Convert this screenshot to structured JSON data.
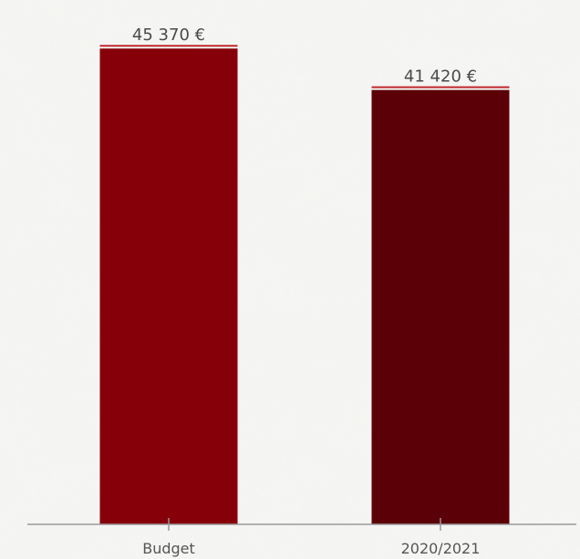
{
  "chart_data": {
    "type": "bar",
    "categories": [
      "Budget",
      "2020/2021"
    ],
    "values": [
      45370,
      41420
    ],
    "value_labels": [
      "45 370 €",
      "41 420 €"
    ],
    "ylim": [
      0,
      50000
    ],
    "grid": false,
    "legend": "none",
    "colors": {
      "bars": [
        "#860009",
        "#5c0007"
      ],
      "label_underline": "#c0282d",
      "axis": "#999999",
      "background": "#f3f3f1"
    }
  }
}
